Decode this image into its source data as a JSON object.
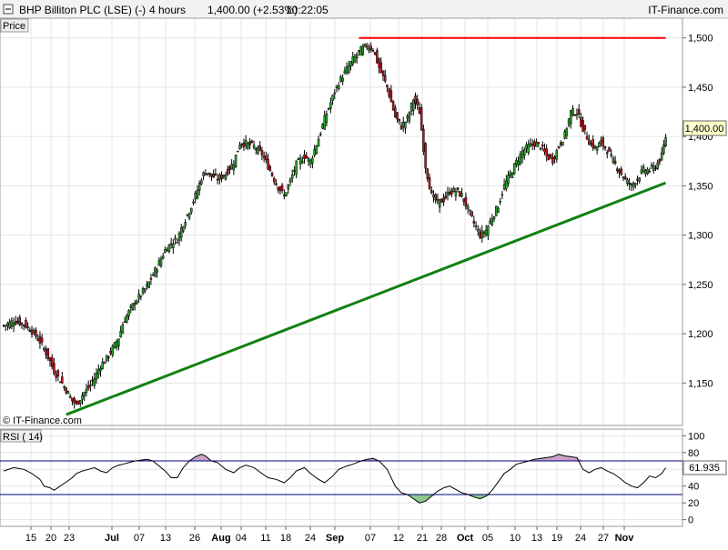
{
  "header": {
    "instrument": "BHP Billiton PLC (LSE) (-)",
    "timeframe": "4 hours",
    "last": "1,400.00 (+2.53%)",
    "time": "10:22:05",
    "brand": "IT-Finance.com",
    "icon": "minimize-square-icon"
  },
  "price_panel": {
    "label": "Price",
    "watermark": "© IT-Finance.com",
    "last_price_tag": "1,400.00"
  },
  "rsi_panel": {
    "label": "RSI ( 14)",
    "value_tag": "61.935"
  },
  "colors": {
    "up_candle": "#2ea02e",
    "down_candle": "#c0141c",
    "wick": "#000000",
    "support_line": "#128012",
    "resistance_line": "#ff0000",
    "overbought_fill": "#c8a0c8",
    "oversold_fill": "#8cc88c",
    "grid": "#e4e4e4",
    "price_tag_bg": "#ffffcc"
  },
  "chart_data": [
    {
      "type": "candlestick",
      "ylim": [
        1107,
        1520
      ],
      "y_ticks": [
        1150,
        1200,
        1250,
        1300,
        1350,
        1400,
        1450,
        1500
      ],
      "y_tick_labels": [
        "1,150",
        "1,200",
        "1,250",
        "1,300",
        "1,350",
        "1,400",
        "1,450",
        "1,500"
      ],
      "x_ticks": [
        "15",
        "20",
        "23",
        "Jul",
        "07",
        "13",
        "26",
        "Aug",
        "04",
        "11",
        "18",
        "24",
        "Sep",
        "07",
        "12",
        "21",
        "28",
        "Oct",
        "05",
        "10",
        "13",
        "19",
        "24",
        "27",
        "Nov"
      ],
      "close_path": [
        [
          0,
          1208
        ],
        [
          5,
          1213
        ],
        [
          10,
          1210
        ],
        [
          14,
          1203
        ],
        [
          18,
          1192
        ],
        [
          20,
          1185
        ],
        [
          23,
          1172
        ],
        [
          25,
          1162
        ],
        [
          28,
          1153
        ],
        [
          31,
          1143
        ],
        [
          34,
          1132
        ],
        [
          36,
          1128
        ],
        [
          39,
          1138
        ],
        [
          42,
          1145
        ],
        [
          45,
          1155
        ],
        [
          48,
          1168
        ],
        [
          51,
          1175
        ],
        [
          54,
          1185
        ],
        [
          57,
          1196
        ],
        [
          59,
          1210
        ],
        [
          62,
          1222
        ],
        [
          65,
          1232
        ],
        [
          68,
          1240
        ],
        [
          71,
          1248
        ],
        [
          74,
          1260
        ],
        [
          77,
          1272
        ],
        [
          80,
          1285
        ],
        [
          83,
          1292
        ],
        [
          86,
          1296
        ],
        [
          89,
          1312
        ],
        [
          92,
          1325
        ],
        [
          95,
          1340
        ],
        [
          98,
          1358
        ],
        [
          100,
          1365
        ],
        [
          103,
          1360
        ],
        [
          106,
          1357
        ],
        [
          110,
          1362
        ],
        [
          114,
          1374
        ],
        [
          117,
          1393
        ],
        [
          120,
          1393
        ],
        [
          124,
          1390
        ],
        [
          128,
          1382
        ],
        [
          131,
          1370
        ],
        [
          135,
          1352
        ],
        [
          139,
          1340
        ],
        [
          142,
          1355
        ],
        [
          145,
          1372
        ],
        [
          149,
          1380
        ],
        [
          152,
          1375
        ],
        [
          156,
          1398
        ],
        [
          159,
          1418
        ],
        [
          163,
          1440
        ],
        [
          166,
          1455
        ],
        [
          170,
          1468
        ],
        [
          173,
          1478
        ],
        [
          177,
          1488
        ],
        [
          180,
          1492
        ],
        [
          183,
          1489
        ],
        [
          186,
          1470
        ],
        [
          190,
          1450
        ],
        [
          194,
          1420
        ],
        [
          197,
          1410
        ],
        [
          200,
          1418
        ],
        [
          203,
          1438
        ],
        [
          206,
          1425
        ],
        [
          209,
          1370
        ],
        [
          212,
          1340
        ],
        [
          215,
          1333
        ],
        [
          218,
          1336
        ],
        [
          221,
          1344
        ],
        [
          224,
          1345
        ],
        [
          227,
          1340
        ],
        [
          230,
          1326
        ],
        [
          233,
          1312
        ],
        [
          236,
          1300
        ],
        [
          239,
          1305
        ],
        [
          242,
          1318
        ],
        [
          245,
          1330
        ],
        [
          248,
          1350
        ],
        [
          251,
          1362
        ],
        [
          254,
          1374
        ],
        [
          257,
          1385
        ],
        [
          260,
          1390
        ],
        [
          263,
          1393
        ],
        [
          266,
          1390
        ],
        [
          269,
          1380
        ],
        [
          272,
          1376
        ],
        [
          275,
          1390
        ],
        [
          278,
          1402
        ],
        [
          281,
          1425
        ],
        [
          284,
          1425
        ],
        [
          287,
          1408
        ],
        [
          290,
          1395
        ],
        [
          293,
          1388
        ],
        [
          296,
          1394
        ],
        [
          299,
          1386
        ],
        [
          302,
          1375
        ],
        [
          305,
          1365
        ],
        [
          308,
          1356
        ],
        [
          311,
          1350
        ],
        [
          314,
          1358
        ],
        [
          317,
          1366
        ],
        [
          320,
          1366
        ],
        [
          323,
          1370
        ],
        [
          326,
          1380
        ],
        [
          328,
          1400
        ]
      ],
      "support_line": {
        "from": [
          31,
          1118
        ],
        "to": [
          328,
          1353
        ]
      },
      "resistance_line": {
        "from": [
          176,
          1500
        ],
        "to": [
          328,
          1500
        ]
      }
    },
    {
      "type": "line",
      "name": "RSI ( 14)",
      "ylim": [
        -8,
        108
      ],
      "y_ticks": [
        0,
        20,
        40,
        60,
        80,
        100
      ],
      "y_tick_labels": [
        "0",
        "20",
        "40",
        "60",
        "80",
        "100"
      ],
      "overbought": 70,
      "oversold": 30,
      "x": [
        0,
        5,
        10,
        14,
        18,
        20,
        23,
        25,
        28,
        31,
        34,
        36,
        39,
        42,
        45,
        48,
        51,
        54,
        57,
        59,
        62,
        65,
        68,
        71,
        74,
        77,
        80,
        83,
        86,
        89,
        92,
        95,
        98,
        100,
        103,
        106,
        110,
        114,
        117,
        120,
        124,
        128,
        131,
        135,
        139,
        142,
        145,
        149,
        152,
        156,
        159,
        163,
        166,
        170,
        173,
        177,
        180,
        183,
        186,
        190,
        194,
        197,
        200,
        203,
        206,
        209,
        212,
        215,
        218,
        221,
        224,
        227,
        230,
        233,
        236,
        239,
        242,
        245,
        248,
        251,
        254,
        257,
        260,
        263,
        266,
        269,
        272,
        275,
        278,
        281,
        284,
        287,
        290,
        293,
        296,
        299,
        302,
        305,
        308,
        311,
        314,
        317,
        320,
        323,
        326,
        328
      ],
      "values": [
        58,
        62,
        60,
        55,
        48,
        40,
        38,
        35,
        40,
        45,
        50,
        55,
        58,
        60,
        62,
        58,
        56,
        62,
        65,
        66,
        68,
        70,
        71,
        72,
        70,
        64,
        58,
        50,
        50,
        62,
        70,
        75,
        78,
        76,
        70,
        68,
        60,
        56,
        62,
        65,
        62,
        55,
        50,
        48,
        44,
        50,
        58,
        62,
        55,
        48,
        44,
        52,
        60,
        64,
        66,
        70,
        72,
        73,
        70,
        60,
        40,
        32,
        30,
        25,
        20,
        22,
        28,
        34,
        38,
        40,
        36,
        32,
        30,
        27,
        25,
        28,
        35,
        45,
        55,
        60,
        66,
        68,
        70,
        72,
        73,
        74,
        75,
        78,
        76,
        75,
        74,
        60,
        56,
        60,
        62,
        58,
        55,
        50,
        44,
        40,
        38,
        44,
        52,
        50,
        55,
        61.935
      ]
    }
  ]
}
